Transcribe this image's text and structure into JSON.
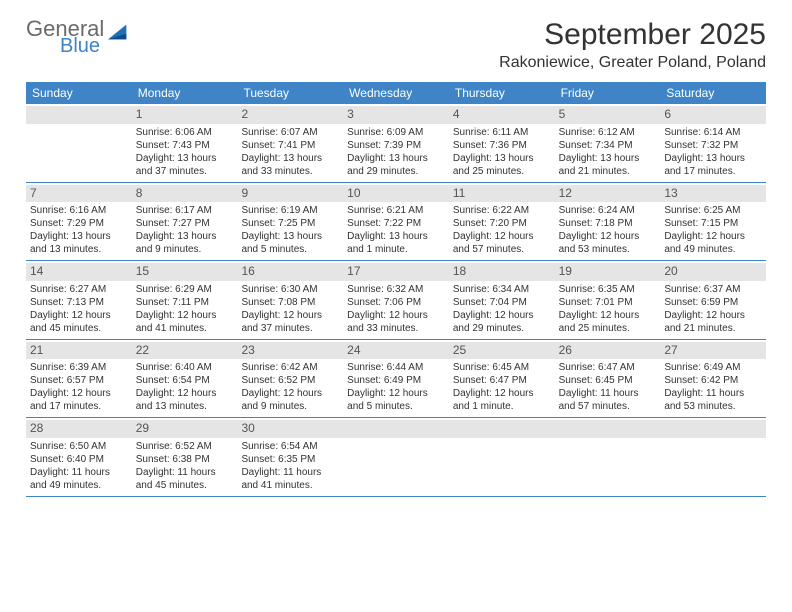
{
  "logo": {
    "word1": "General",
    "word2": "Blue",
    "tri_color": "#1f6fb2"
  },
  "title": "September 2025",
  "location": "Rakoniewice, Greater Poland, Poland",
  "colors": {
    "header_bar": "#3e84c6",
    "header_text": "#ffffff",
    "daynum_band": "#e5e5e5",
    "row_divider": "#3e84c6",
    "body_text": "#333333",
    "background": "#ffffff"
  },
  "weekdays": [
    "Sunday",
    "Monday",
    "Tuesday",
    "Wednesday",
    "Thursday",
    "Friday",
    "Saturday"
  ],
  "weeks": [
    [
      null,
      {
        "n": "1",
        "sr": "6:06 AM",
        "ss": "7:43 PM",
        "dl": "13 hours and 37 minutes."
      },
      {
        "n": "2",
        "sr": "6:07 AM",
        "ss": "7:41 PM",
        "dl": "13 hours and 33 minutes."
      },
      {
        "n": "3",
        "sr": "6:09 AM",
        "ss": "7:39 PM",
        "dl": "13 hours and 29 minutes."
      },
      {
        "n": "4",
        "sr": "6:11 AM",
        "ss": "7:36 PM",
        "dl": "13 hours and 25 minutes."
      },
      {
        "n": "5",
        "sr": "6:12 AM",
        "ss": "7:34 PM",
        "dl": "13 hours and 21 minutes."
      },
      {
        "n": "6",
        "sr": "6:14 AM",
        "ss": "7:32 PM",
        "dl": "13 hours and 17 minutes."
      }
    ],
    [
      {
        "n": "7",
        "sr": "6:16 AM",
        "ss": "7:29 PM",
        "dl": "13 hours and 13 minutes."
      },
      {
        "n": "8",
        "sr": "6:17 AM",
        "ss": "7:27 PM",
        "dl": "13 hours and 9 minutes."
      },
      {
        "n": "9",
        "sr": "6:19 AM",
        "ss": "7:25 PM",
        "dl": "13 hours and 5 minutes."
      },
      {
        "n": "10",
        "sr": "6:21 AM",
        "ss": "7:22 PM",
        "dl": "13 hours and 1 minute."
      },
      {
        "n": "11",
        "sr": "6:22 AM",
        "ss": "7:20 PM",
        "dl": "12 hours and 57 minutes."
      },
      {
        "n": "12",
        "sr": "6:24 AM",
        "ss": "7:18 PM",
        "dl": "12 hours and 53 minutes."
      },
      {
        "n": "13",
        "sr": "6:25 AM",
        "ss": "7:15 PM",
        "dl": "12 hours and 49 minutes."
      }
    ],
    [
      {
        "n": "14",
        "sr": "6:27 AM",
        "ss": "7:13 PM",
        "dl": "12 hours and 45 minutes."
      },
      {
        "n": "15",
        "sr": "6:29 AM",
        "ss": "7:11 PM",
        "dl": "12 hours and 41 minutes."
      },
      {
        "n": "16",
        "sr": "6:30 AM",
        "ss": "7:08 PM",
        "dl": "12 hours and 37 minutes."
      },
      {
        "n": "17",
        "sr": "6:32 AM",
        "ss": "7:06 PM",
        "dl": "12 hours and 33 minutes."
      },
      {
        "n": "18",
        "sr": "6:34 AM",
        "ss": "7:04 PM",
        "dl": "12 hours and 29 minutes."
      },
      {
        "n": "19",
        "sr": "6:35 AM",
        "ss": "7:01 PM",
        "dl": "12 hours and 25 minutes."
      },
      {
        "n": "20",
        "sr": "6:37 AM",
        "ss": "6:59 PM",
        "dl": "12 hours and 21 minutes."
      }
    ],
    [
      {
        "n": "21",
        "sr": "6:39 AM",
        "ss": "6:57 PM",
        "dl": "12 hours and 17 minutes."
      },
      {
        "n": "22",
        "sr": "6:40 AM",
        "ss": "6:54 PM",
        "dl": "12 hours and 13 minutes."
      },
      {
        "n": "23",
        "sr": "6:42 AM",
        "ss": "6:52 PM",
        "dl": "12 hours and 9 minutes."
      },
      {
        "n": "24",
        "sr": "6:44 AM",
        "ss": "6:49 PM",
        "dl": "12 hours and 5 minutes."
      },
      {
        "n": "25",
        "sr": "6:45 AM",
        "ss": "6:47 PM",
        "dl": "12 hours and 1 minute."
      },
      {
        "n": "26",
        "sr": "6:47 AM",
        "ss": "6:45 PM",
        "dl": "11 hours and 57 minutes."
      },
      {
        "n": "27",
        "sr": "6:49 AM",
        "ss": "6:42 PM",
        "dl": "11 hours and 53 minutes."
      }
    ],
    [
      {
        "n": "28",
        "sr": "6:50 AM",
        "ss": "6:40 PM",
        "dl": "11 hours and 49 minutes."
      },
      {
        "n": "29",
        "sr": "6:52 AM",
        "ss": "6:38 PM",
        "dl": "11 hours and 45 minutes."
      },
      {
        "n": "30",
        "sr": "6:54 AM",
        "ss": "6:35 PM",
        "dl": "11 hours and 41 minutes."
      },
      null,
      null,
      null,
      null
    ]
  ],
  "labels": {
    "sunrise": "Sunrise:",
    "sunset": "Sunset:",
    "daylight": "Daylight:"
  }
}
